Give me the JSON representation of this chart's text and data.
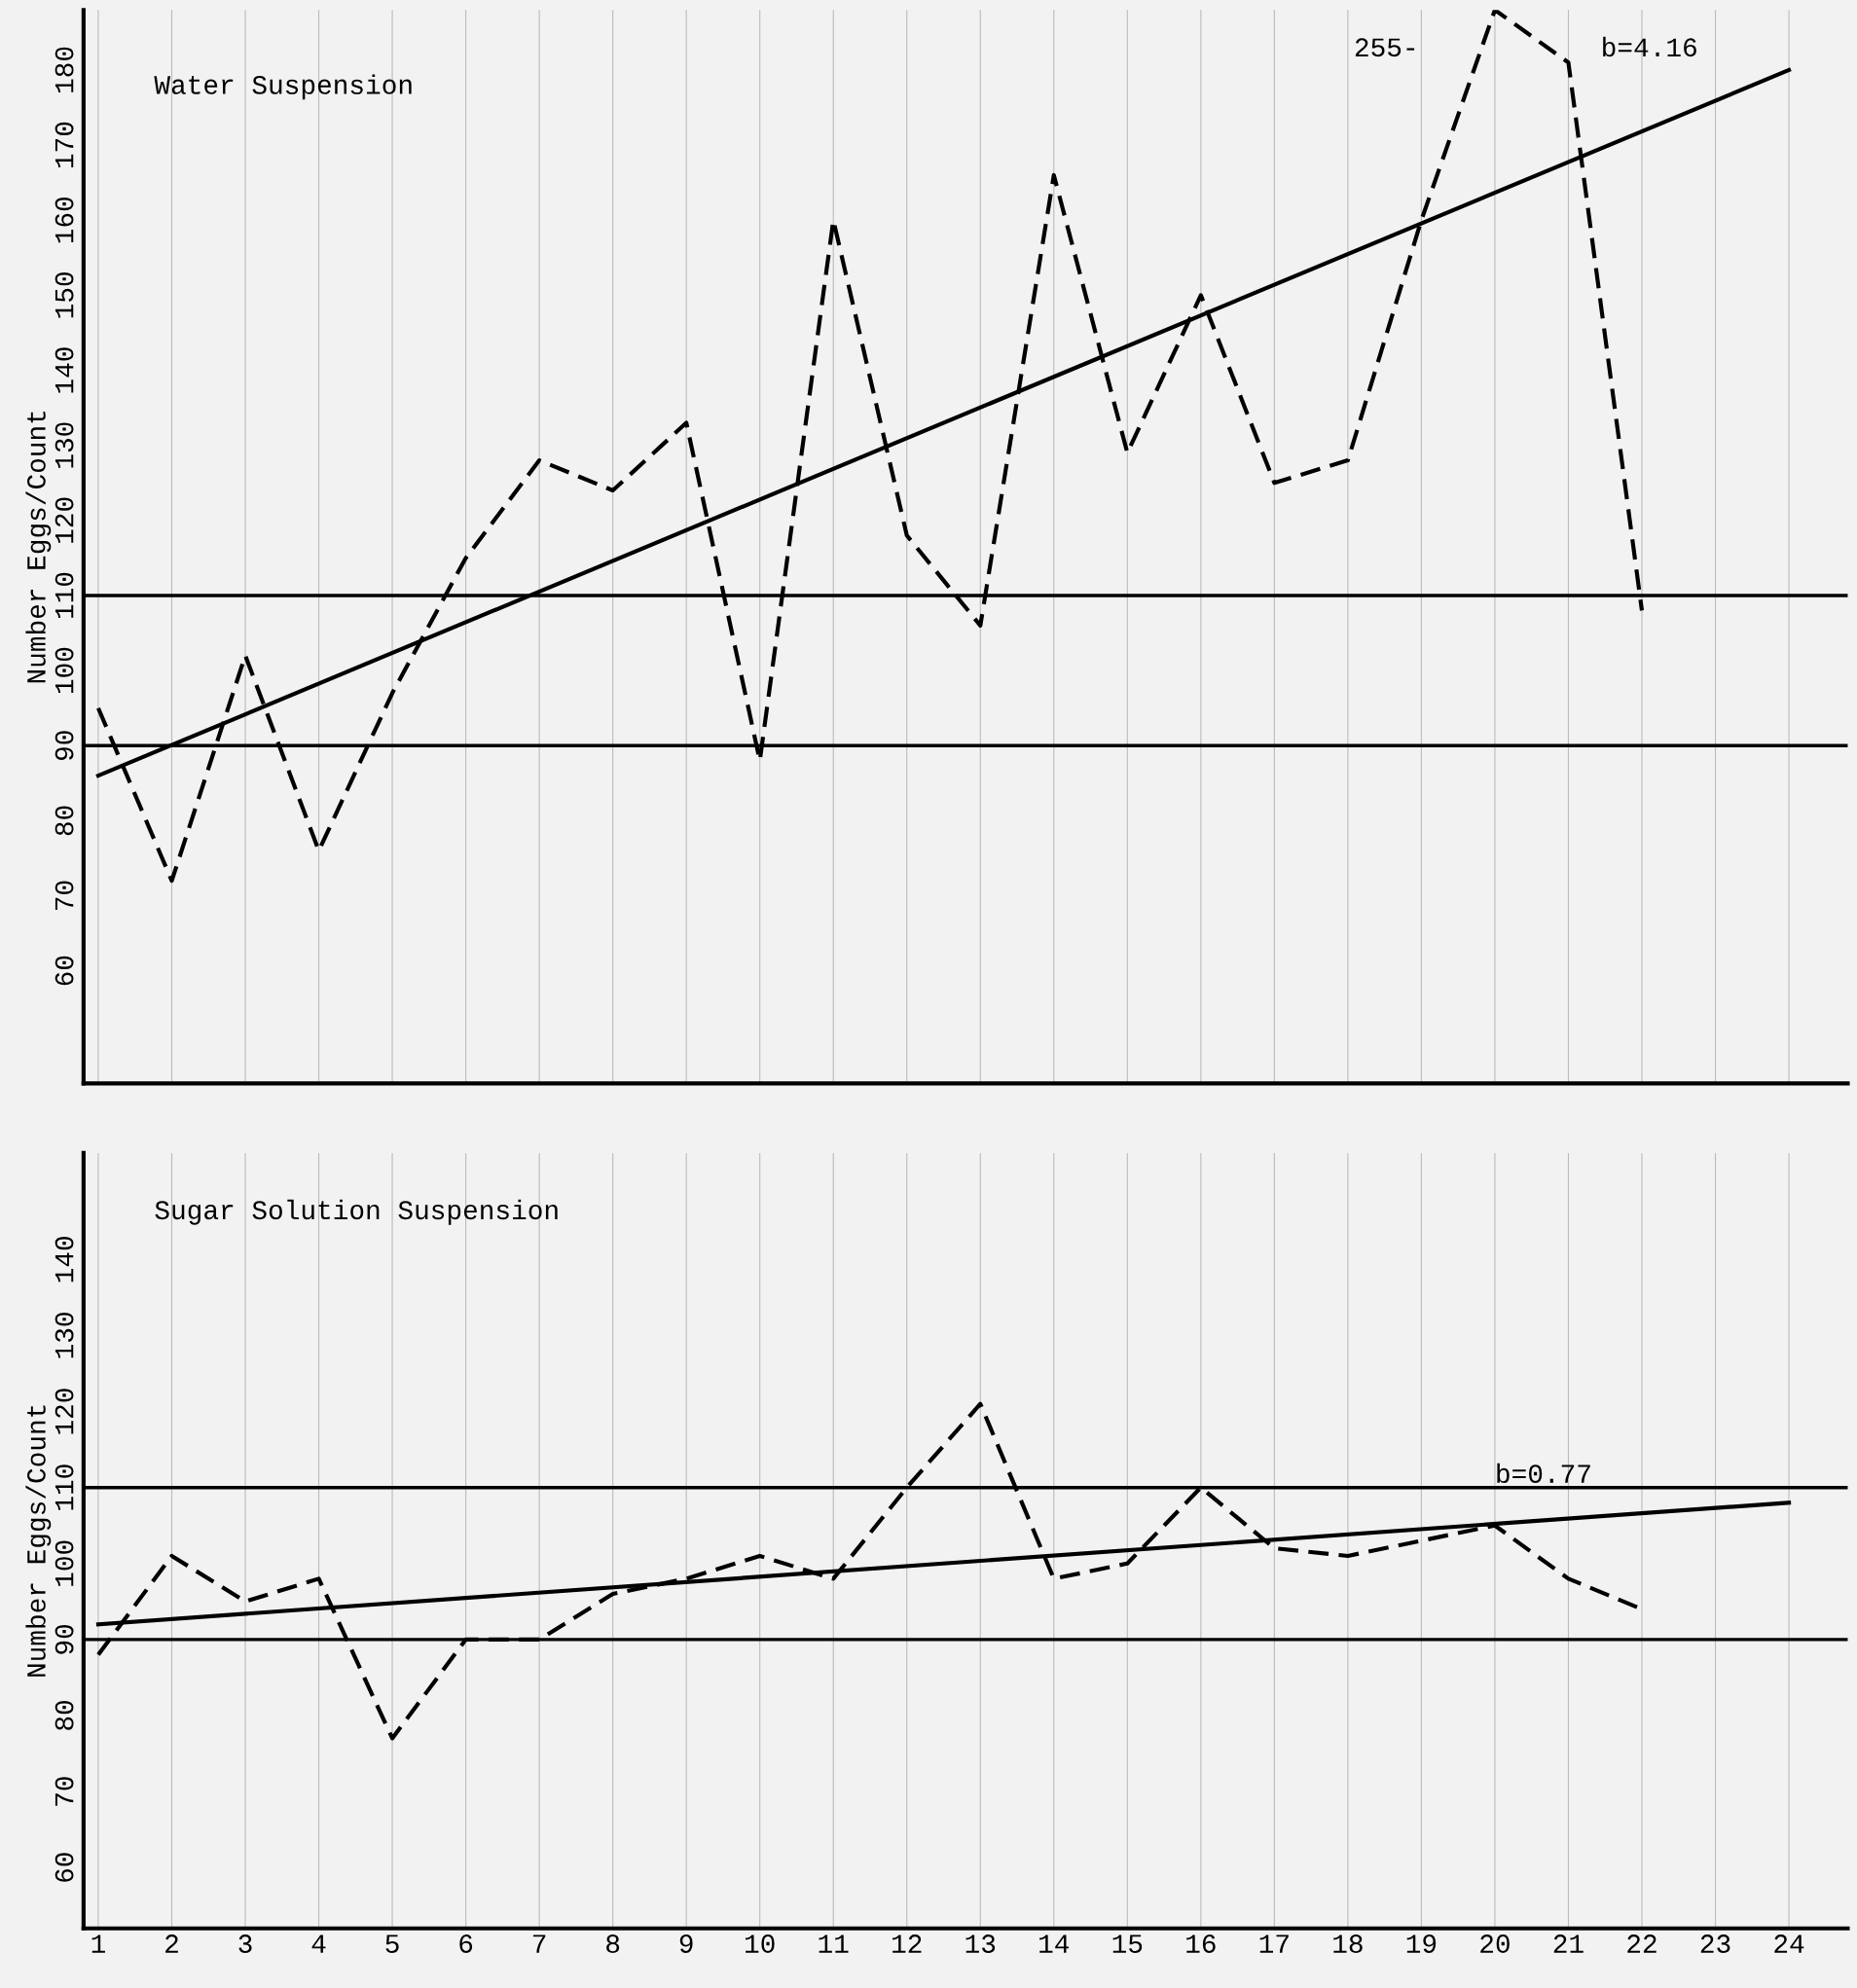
{
  "chart_data": [
    {
      "type": "line",
      "title": "Water Suspension",
      "ylabel": "Number Eggs/Count",
      "categories": [
        "1",
        "2",
        "3",
        "4",
        "5",
        "6",
        "7",
        "8",
        "9",
        "10",
        "11",
        "12",
        "13",
        "14",
        "15",
        "16",
        "17",
        "18",
        "19",
        "20",
        "21",
        "22",
        "23",
        "24"
      ],
      "series": [
        {
          "color": "#000000",
          "line_style": "dashed",
          "values": [
            95,
            72,
            102,
            76,
            97,
            115,
            128,
            124,
            133,
            88,
            160,
            118,
            106,
            166,
            129,
            150,
            125,
            128,
            160,
            188,
            181,
            108,
            null,
            null
          ]
        },
        {
          "color": "#000000",
          "line_style": "solid",
          "x": [
            "1",
            "24"
          ],
          "values": [
            86,
            180
          ]
        }
      ],
      "ref_lines": [
        {
          "axis": "y",
          "value": 110,
          "color": "#000000"
        },
        {
          "axis": "y",
          "value": 90,
          "color": "#000000"
        }
      ],
      "annotations": [
        "255-",
        "b=4.16"
      ],
      "ylim": [
        45,
        188
      ],
      "yticks": [
        60,
        70,
        80,
        90,
        100,
        110,
        120,
        130,
        140,
        150,
        160,
        170,
        180
      ],
      "grid": "x",
      "tick_labels": "y",
      "legend": false
    },
    {
      "type": "line",
      "title": "Sugar Solution Suspension",
      "ylabel": "Number Eggs/Count",
      "categories": [
        "1",
        "2",
        "3",
        "4",
        "5",
        "6",
        "7",
        "8",
        "9",
        "10",
        "11",
        "12",
        "13",
        "14",
        "15",
        "16",
        "17",
        "18",
        "19",
        "20",
        "21",
        "22",
        "23",
        "24"
      ],
      "series": [
        {
          "color": "#000000",
          "line_style": "dashed",
          "values": [
            88,
            101,
            95,
            98,
            77,
            90,
            90,
            96,
            98,
            101,
            98,
            110,
            121,
            98,
            100,
            110,
            102,
            101,
            103,
            105,
            98,
            94,
            null,
            null
          ]
        },
        {
          "color": "#000000",
          "line_style": "solid",
          "x": [
            "1",
            "24"
          ],
          "values": [
            92,
            108
          ]
        }
      ],
      "ref_lines": [
        {
          "axis": "y",
          "value": 110,
          "color": "#000000"
        },
        {
          "axis": "y",
          "value": 90,
          "color": "#000000"
        }
      ],
      "annotations": [
        "b=0.77"
      ],
      "ylim": [
        52,
        154
      ],
      "yticks": [
        60,
        70,
        80,
        90,
        100,
        110,
        120,
        130,
        140
      ],
      "grid": "x",
      "legend": false
    }
  ]
}
